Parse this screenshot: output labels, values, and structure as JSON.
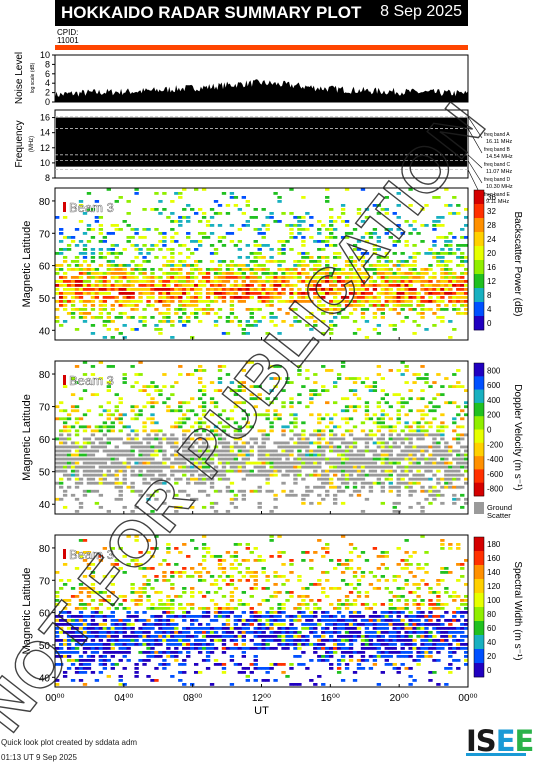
{
  "header": {
    "title": "HOKKAIDO RADAR SUMMARY PLOT",
    "date": "8 Sep 2025"
  },
  "cpid": {
    "label": "CPID:",
    "value": "11001"
  },
  "watermark": "NOT FOR PUBLICATION",
  "footer": {
    "line1": "Quick look plot created by sddata adm",
    "line2": "01:13 UT  9 Sep 2025"
  },
  "logo": {
    "s": "IS",
    "e1": "E",
    "e2": "E"
  },
  "colors": {
    "orange_bar": "#ff4500",
    "ground_scatter": "#9a9a9a"
  },
  "chart_data": [
    {
      "type": "area",
      "panel": "noise",
      "ylabel": "Noise Level",
      "ylabel_sub": "log scale (dB)",
      "ylim": [
        0,
        10
      ],
      "yticks": [
        0,
        2,
        4,
        6,
        8,
        10
      ],
      "x": [
        0,
        1,
        2,
        3,
        4,
        5,
        6,
        7,
        8,
        9,
        10,
        11,
        12,
        13,
        14,
        15,
        16,
        17,
        18,
        19,
        20,
        21,
        22,
        23,
        24
      ],
      "values": [
        1.5,
        1.8,
        2.0,
        2.1,
        2.2,
        2.3,
        2.5,
        2.8,
        3.0,
        3.2,
        3.6,
        3.9,
        4.1,
        3.8,
        3.5,
        3.1,
        2.8,
        2.6,
        2.4,
        2.3,
        2.2,
        2.1,
        2.0,
        1.9,
        1.8
      ]
    },
    {
      "type": "line",
      "panel": "frequency",
      "ylabel": "Frequency",
      "ylabel_sub": "(MHz)",
      "ylim": [
        8,
        17
      ],
      "yticks": [
        8,
        10,
        12,
        14,
        16
      ],
      "fill_band": [
        9.5,
        16.0
      ],
      "bands": [
        {
          "name": "freq band A",
          "freq": "16.11 MHz",
          "value": 16.11
        },
        {
          "name": "freq band B",
          "freq": "14.54 MHz",
          "value": 14.54
        },
        {
          "name": "freq band C",
          "freq": "11.07 MHz",
          "value": 11.07
        },
        {
          "name": "freq band D",
          "freq": "10.30 MHz",
          "value": 10.3
        },
        {
          "name": "freq band E",
          "freq": "9.11 MHz",
          "value": 9.11
        }
      ]
    },
    {
      "type": "heatmap",
      "panel": "power",
      "beam": "Beam  3",
      "ylabel": "Magnetic Latitude",
      "ylim": [
        37,
        84
      ],
      "yticks": [
        40,
        50,
        60,
        70,
        80
      ],
      "colorbar_label": "Backscatter Power (dB)",
      "colorbar_ticks": [
        "36",
        "32",
        "28",
        "24",
        "20",
        "16",
        "12",
        "8",
        "4",
        "0"
      ],
      "colorbar_colors": [
        "#d40000",
        "#ff3000",
        "#ff9000",
        "#ffd000",
        "#e6ff00",
        "#90ee00",
        "#20c020",
        "#18b0c0",
        "#0050ff",
        "#2000c0"
      ],
      "gs_label": ""
    },
    {
      "type": "heatmap",
      "panel": "velocity",
      "beam": "Beam  3",
      "ylabel": "Magnetic Latitude",
      "ylim": [
        37,
        84
      ],
      "yticks": [
        40,
        50,
        60,
        70,
        80
      ],
      "colorbar_label": "Doppler Velocity (m s⁻¹)",
      "colorbar_ticks": [
        "800",
        "600",
        "400",
        "200",
        "0",
        "-200",
        "-400",
        "-600",
        "-800"
      ],
      "colorbar_colors": [
        "#2000c0",
        "#0050ff",
        "#18b0c0",
        "#20c020",
        "#90ee00",
        "#e6ff00",
        "#ffd000",
        "#ff9000",
        "#ff3000",
        "#d40000"
      ],
      "gs_label": "Ground Scatter"
    },
    {
      "type": "heatmap",
      "panel": "width",
      "beam": "Beam  3",
      "ylabel": "Magnetic Latitude",
      "xlabel": "UT",
      "ylim": [
        37,
        84
      ],
      "yticks": [
        40,
        50,
        60,
        70,
        80
      ],
      "xticks": [
        "00⁰⁰",
        "04⁰⁰",
        "08⁰⁰",
        "12⁰⁰",
        "16⁰⁰",
        "20⁰⁰",
        "00⁰⁰"
      ],
      "colorbar_label": "Spectral Width (m s⁻¹)",
      "colorbar_ticks": [
        "180",
        "160",
        "140",
        "120",
        "100",
        "80",
        "60",
        "40",
        "20",
        "0"
      ],
      "colorbar_colors": [
        "#d40000",
        "#ff3000",
        "#ff9000",
        "#ffd000",
        "#e6ff00",
        "#90ee00",
        "#20c020",
        "#18b0c0",
        "#0050ff",
        "#2000c0"
      ],
      "gs_label": ""
    }
  ]
}
